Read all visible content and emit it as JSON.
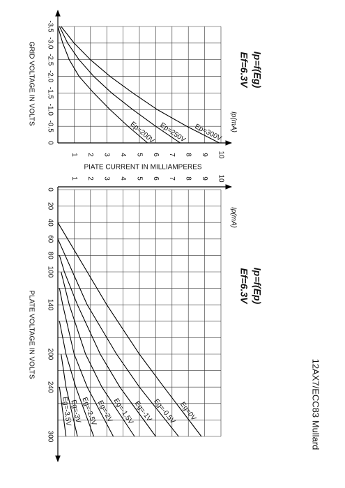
{
  "page_title": "12AX7/ECC83 Mullard",
  "chart_data": [
    {
      "type": "line",
      "title": "Ip=f(Eg)",
      "subtitle": "Ef=6.3V",
      "x_label": "GRID VOLTAGE IN VOLTS",
      "y_label": "PIATE CURRENT IN MILLIAMPERES",
      "y_unit": "Ip(mA)",
      "xlim": [
        -3.5,
        0
      ],
      "xticks": [
        -3.5,
        {
          "value": -3,
          "label": "-3.0"
        },
        -2.5,
        {
          "value": -2,
          "label": "-2.0"
        },
        -1.5,
        {
          "value": -1,
          "label": "-1.0"
        },
        -0.5,
        0
      ],
      "ylim": [
        0,
        10
      ],
      "yticks": [
        1,
        2,
        3,
        4,
        5,
        6,
        7,
        8,
        9,
        10
      ],
      "grid": true,
      "series": [
        {
          "name": "Ep=200V",
          "color": "#000000",
          "x": [
            -3.5,
            -3,
            -2.5,
            -2,
            -1.5,
            -1,
            -0.5,
            0
          ],
          "values": [
            0,
            0.3,
            0.7,
            1.3,
            2.2,
            3.2,
            4.3,
            5.5
          ]
        },
        {
          "name": "Ep=250V",
          "color": "#000000",
          "x": [
            -3.5,
            -3,
            -2.5,
            -2,
            -1.5,
            -1,
            -0.5,
            0
          ],
          "values": [
            0.1,
            0.6,
            1.3,
            2.2,
            3.3,
            4.6,
            6,
            7.5
          ]
        },
        {
          "name": "Ep=300V",
          "color": "#000000",
          "x": [
            -3.5,
            -3,
            -2.5,
            -2,
            -1.5,
            -1,
            -0.5,
            0
          ],
          "values": [
            0.2,
            1,
            2,
            3.2,
            4.6,
            6.1,
            7.9,
            9.9
          ]
        }
      ]
    },
    {
      "type": "line",
      "title": "Ip=f(Ep)",
      "subtitle": "Ef=6.3V",
      "x_label": "PLATE VOLTAGE IN VOLTS",
      "y_unit": "Ip(mA)",
      "xlim": [
        0,
        300
      ],
      "xticks": [
        0,
        20,
        40,
        60,
        80,
        100,
        140,
        200,
        240,
        300
      ],
      "xgrid": [
        0,
        20,
        40,
        60,
        80,
        100,
        120,
        140,
        160,
        180,
        200,
        220,
        240,
        260,
        280,
        300
      ],
      "ylim": [
        0,
        10
      ],
      "yticks": [
        1,
        2,
        3,
        4,
        5,
        6,
        7,
        8,
        9,
        10
      ],
      "grid": true,
      "series": [
        {
          "name": "Eg=0V",
          "color": "#000000",
          "x": [
            40,
            60,
            100,
            140,
            200,
            240,
            300
          ],
          "values": [
            0,
            0.6,
            1.8,
            3,
            5,
            6.5,
            8.8
          ]
        },
        {
          "name": "Eg=-0.5V",
          "color": "#000000",
          "x": [
            60,
            100,
            140,
            200,
            240,
            300
          ],
          "values": [
            0,
            0.9,
            1.8,
            3.6,
            5,
            7.4
          ]
        },
        {
          "name": "Eg=-1V",
          "color": "#000000",
          "x": [
            80,
            100,
            140,
            200,
            240,
            300
          ],
          "values": [
            0.1,
            0.4,
            1.2,
            2.6,
            3.8,
            6
          ]
        },
        {
          "name": "Eg=-1.5V",
          "color": "#000000",
          "x": [
            100,
            140,
            200,
            240,
            300
          ],
          "values": [
            0.2,
            0.7,
            1.7,
            2.7,
            4.7
          ]
        },
        {
          "name": "Eg=-2V",
          "color": "#000000",
          "x": [
            120,
            140,
            200,
            240,
            300
          ],
          "values": [
            0.1,
            0.3,
            1,
            1.8,
            3.4
          ]
        },
        {
          "name": "Eg=-2.5V",
          "color": "#000000",
          "x": [
            160,
            200,
            240,
            300
          ],
          "values": [
            0.1,
            0.5,
            1.1,
            2.2
          ]
        },
        {
          "name": "Eg=-3V",
          "color": "#000000",
          "x": [
            200,
            240,
            300
          ],
          "values": [
            0.2,
            0.5,
            1.2
          ]
        },
        {
          "name": "Eg=-3.5V",
          "color": "#000000",
          "x": [
            240,
            300
          ],
          "values": [
            0.1,
            0.5
          ]
        }
      ]
    }
  ]
}
